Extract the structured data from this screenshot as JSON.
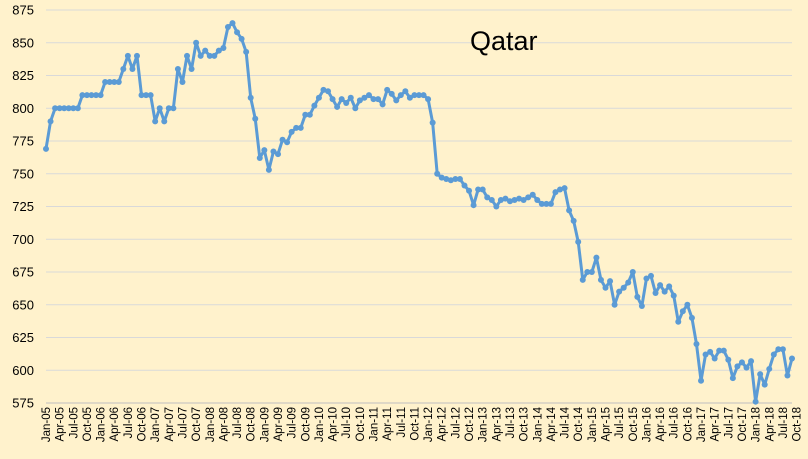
{
  "chart_data": {
    "type": "line",
    "title": "Qatar",
    "xlabel": "",
    "ylabel": "",
    "ylim": [
      575,
      875
    ],
    "yticks": [
      575,
      600,
      625,
      650,
      675,
      700,
      725,
      750,
      775,
      800,
      825,
      850,
      875
    ],
    "xtick_labels": [
      "Jan-05",
      "Apr-05",
      "Jul-05",
      "Oct-05",
      "Jan-06",
      "Apr-06",
      "Jul-06",
      "Oct-06",
      "Jan-07",
      "Apr-07",
      "Jul-07",
      "Oct-07",
      "Jan-08",
      "Apr-08",
      "Jul-08",
      "Oct-08",
      "Jan-09",
      "Apr-09",
      "Jul-09",
      "Oct-09",
      "Jan-10",
      "Apr-10",
      "Jul-10",
      "Oct-10",
      "Jan-11",
      "Apr-11",
      "Jul-11",
      "Oct-11",
      "Jan-12",
      "Apr-12",
      "Jul-12",
      "Oct-12",
      "Jan-13",
      "Apr-13",
      "Jul-13",
      "Oct-13",
      "Jan-14",
      "Apr-14",
      "Jul-14",
      "Oct-14",
      "Jan-15",
      "Apr-15",
      "Jul-15",
      "Oct-15",
      "Jan-16",
      "Apr-16",
      "Jul-16",
      "Oct-16",
      "Jan-17",
      "Apr-17",
      "Jul-17",
      "Oct-17",
      "Jan-18",
      "Apr-18",
      "Jul-18",
      "Oct-18"
    ],
    "grid": true,
    "legend": "none",
    "series": [
      {
        "color": "#5B9BD5",
        "x_start": "Jan-05",
        "x_step": "month",
        "values": [
          769,
          790,
          800,
          800,
          800,
          800,
          800,
          800,
          810,
          810,
          810,
          810,
          810,
          820,
          820,
          820,
          820,
          830,
          840,
          830,
          840,
          810,
          810,
          810,
          790,
          800,
          790,
          800,
          800,
          830,
          820,
          840,
          830,
          850,
          840,
          844,
          840,
          840,
          844,
          846,
          862,
          865,
          858,
          853,
          843,
          808,
          792,
          762,
          768,
          753,
          767,
          765,
          776,
          774,
          782,
          785,
          785,
          795,
          795,
          802,
          808,
          814,
          813,
          807,
          801,
          807,
          804,
          808,
          800,
          806,
          808,
          810,
          807,
          807,
          803,
          814,
          811,
          806,
          810,
          813,
          808,
          810,
          810,
          810,
          807,
          789,
          750,
          747,
          746,
          745,
          746,
          746,
          741,
          737,
          726,
          738,
          738,
          732,
          730,
          725,
          730,
          731,
          729,
          730,
          731,
          730,
          732,
          734,
          730,
          727,
          727,
          727,
          736,
          738,
          739,
          722,
          714,
          698,
          669,
          675,
          675,
          686,
          669,
          663,
          668,
          650,
          660,
          663,
          667,
          675,
          656,
          649,
          670,
          672,
          659,
          665,
          660,
          664,
          657,
          637,
          645,
          650,
          640,
          620,
          592,
          612,
          614,
          609,
          615,
          615,
          608,
          594,
          603,
          606,
          602,
          607,
          576,
          597,
          589,
          601,
          612,
          616,
          616,
          596,
          609
        ]
      }
    ]
  }
}
